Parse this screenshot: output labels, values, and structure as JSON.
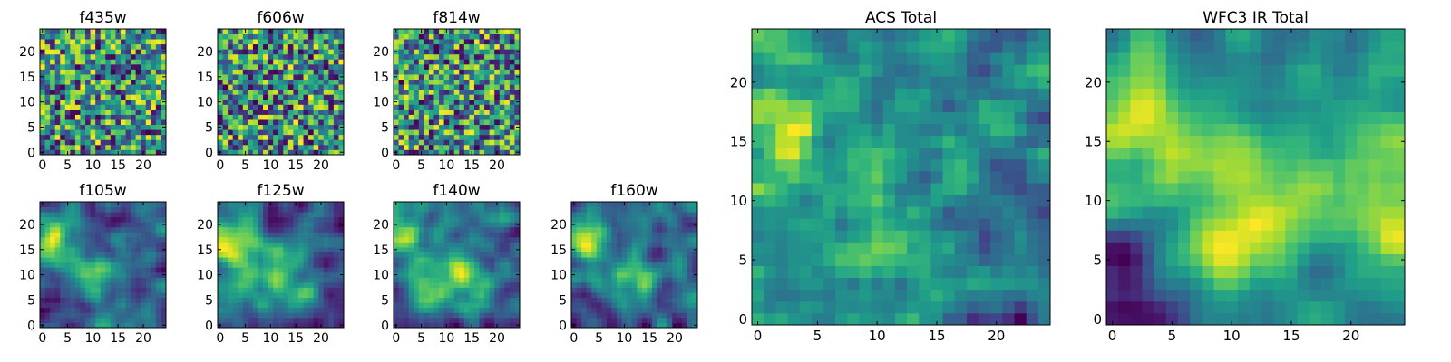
{
  "colormap": "viridis",
  "colormap_stops": [
    "#440154",
    "#482878",
    "#3e4989",
    "#31688e",
    "#26828e",
    "#1f9e89",
    "#35b779",
    "#6ece58",
    "#b5de2b",
    "#fde725"
  ],
  "chart_data": [
    {
      "type": "heatmap",
      "title": "f435w",
      "xlim": [
        0,
        25
      ],
      "ylim": [
        0,
        25
      ],
      "xticks": [
        "0",
        "5",
        "10",
        "15",
        "20"
      ],
      "yticks": [
        "0",
        "5",
        "10",
        "15",
        "20"
      ],
      "pattern": "noise",
      "seed": 11
    },
    {
      "type": "heatmap",
      "title": "f606w",
      "xlim": [
        0,
        25
      ],
      "ylim": [
        0,
        25
      ],
      "xticks": [
        "0",
        "5",
        "10",
        "15",
        "20"
      ],
      "yticks": [
        "0",
        "5",
        "10",
        "15",
        "20"
      ],
      "pattern": "noise",
      "seed": 23
    },
    {
      "type": "heatmap",
      "title": "f814w",
      "xlim": [
        0,
        25
      ],
      "ylim": [
        0,
        25
      ],
      "xticks": [
        "0",
        "5",
        "10",
        "15",
        "20"
      ],
      "yticks": [
        "0",
        "5",
        "10",
        "15",
        "20"
      ],
      "pattern": "noise",
      "seed": 37
    },
    {
      "type": "heatmap",
      "title": "f105w",
      "xlim": [
        0,
        25
      ],
      "ylim": [
        0,
        25
      ],
      "xticks": [
        "0",
        "5",
        "10",
        "15",
        "20"
      ],
      "yticks": [
        "0",
        "5",
        "10",
        "15",
        "20"
      ],
      "pattern": "smooth",
      "seed": 41
    },
    {
      "type": "heatmap",
      "title": "f125w",
      "xlim": [
        0,
        25
      ],
      "ylim": [
        0,
        25
      ],
      "xticks": [
        "0",
        "5",
        "10",
        "15",
        "20"
      ],
      "yticks": [
        "0",
        "5",
        "10",
        "15",
        "20"
      ],
      "pattern": "smooth",
      "seed": 53
    },
    {
      "type": "heatmap",
      "title": "f140w",
      "xlim": [
        0,
        25
      ],
      "ylim": [
        0,
        25
      ],
      "xticks": [
        "0",
        "5",
        "10",
        "15",
        "20"
      ],
      "yticks": [
        "0",
        "5",
        "10",
        "15",
        "20"
      ],
      "pattern": "smooth",
      "seed": 67
    },
    {
      "type": "heatmap",
      "title": "f160w",
      "xlim": [
        0,
        25
      ],
      "ylim": [
        0,
        25
      ],
      "xticks": [
        "0",
        "5",
        "10",
        "15",
        "20"
      ],
      "yticks": [
        "0",
        "5",
        "10",
        "15",
        "20"
      ],
      "pattern": "smooth",
      "seed": 79
    },
    {
      "type": "heatmap",
      "title": "ACS Total",
      "xlim": [
        0,
        25
      ],
      "ylim": [
        0,
        25
      ],
      "xticks": [
        "0",
        "5",
        "10",
        "15",
        "20"
      ],
      "yticks": [
        "0",
        "5",
        "10",
        "15",
        "20"
      ],
      "pattern": "acs",
      "seed": 83
    },
    {
      "type": "heatmap",
      "title": "WFC3 IR Total",
      "xlim": [
        0,
        25
      ],
      "ylim": [
        0,
        25
      ],
      "xticks": [
        "0",
        "5",
        "10",
        "15",
        "20"
      ],
      "yticks": [
        "0",
        "5",
        "10",
        "15",
        "20"
      ],
      "pattern": "ir",
      "seed": 97
    }
  ]
}
